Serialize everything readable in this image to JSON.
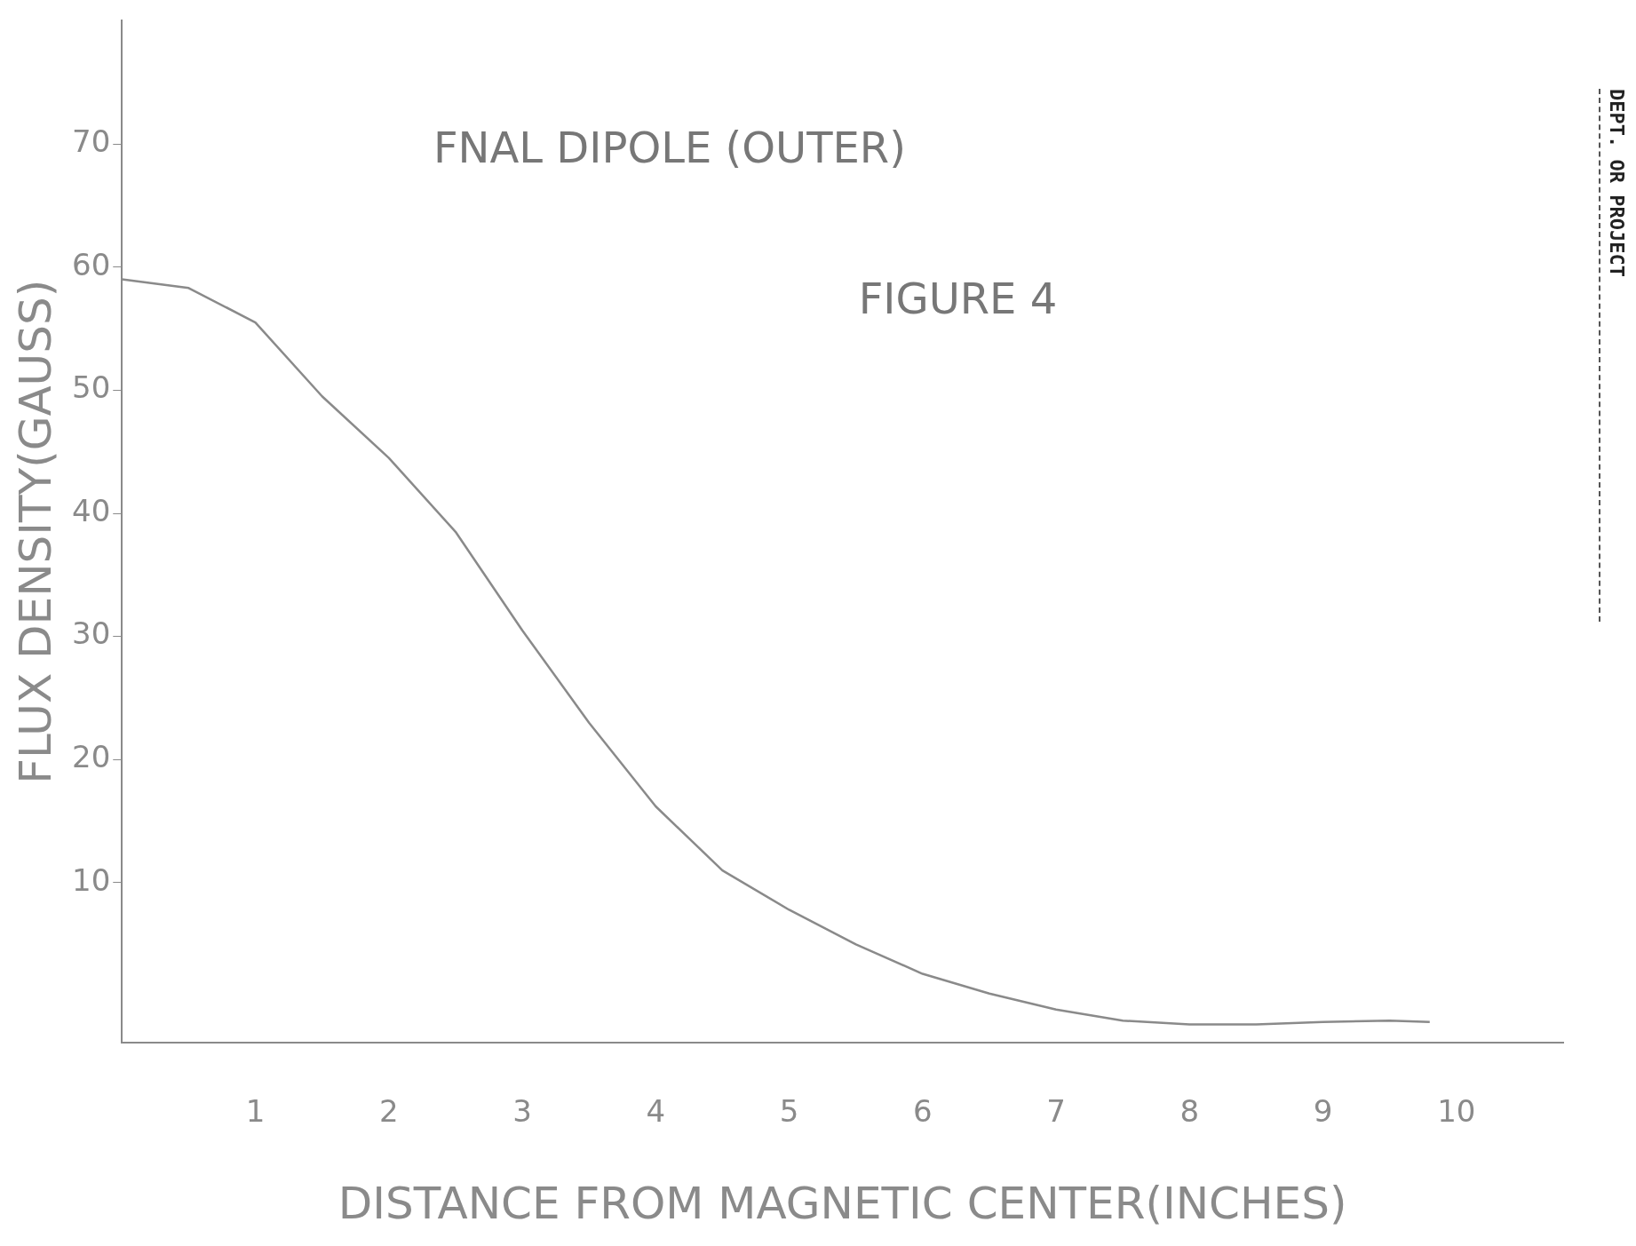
{
  "chart_data": {
    "type": "line",
    "title": "FNAL DIPOLE (OUTER)",
    "xlabel": "DISTANCE FROM MAGNETIC CENTER(INCHES)",
    "ylabel": "FLUX DENSITY(GAUSS)",
    "annotations": [
      "FIGURE 4",
      "DEPT. OR PROJECT"
    ],
    "x": [
      0,
      0.5,
      1,
      1.5,
      2,
      2.5,
      3,
      3.5,
      4,
      4.5,
      5,
      5.5,
      6,
      6.5,
      7,
      7.5,
      8,
      8.5,
      9,
      9.5,
      9.8
    ],
    "series": [
      {
        "color": "#8a8a8a",
        "values": [
          59,
          58.3,
          55.5,
          49.5,
          44.5,
          38.5,
          30.5,
          23,
          16.2,
          11,
          7.8,
          5,
          2.6,
          1,
          -0.3,
          -1.2,
          -1.5,
          -1.5,
          -1.3,
          -1.2,
          -1.3
        ]
      }
    ],
    "xlim": [
      0,
      10.8
    ],
    "xticks": [
      1,
      2,
      3,
      4,
      5,
      6,
      7,
      8,
      9,
      10
    ],
    "ylim": [
      -3,
      80
    ],
    "yticks": [
      10,
      20,
      30,
      40,
      50,
      60,
      70
    ],
    "grid": false,
    "legend": false,
    "marker": "none",
    "line_style": "solid"
  }
}
